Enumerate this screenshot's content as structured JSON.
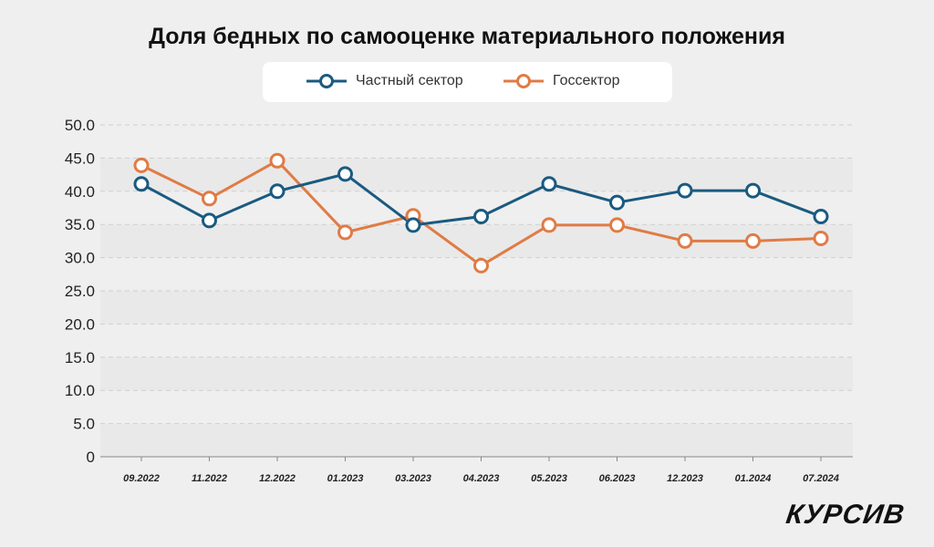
{
  "chart_data": {
    "type": "line",
    "title": "Доля бедных по самооценке материального положения",
    "xlabel": "",
    "ylabel": "",
    "ylim": [
      0,
      50
    ],
    "yticks": [
      "0",
      "5.0",
      "10.0",
      "15.0",
      "20.0",
      "25.0",
      "30.0",
      "35.0",
      "40.0",
      "45.0",
      "50.0"
    ],
    "categories": [
      "09.2022",
      "11.2022",
      "12.2022",
      "01.2023",
      "03.2023",
      "04.2023",
      "05.2023",
      "06.2023",
      "12.2023",
      "01.2024",
      "07.2024"
    ],
    "grid": true,
    "legend_position": "top",
    "series": [
      {
        "name": "Частный сектор",
        "color": "#1a5a80",
        "values": [
          41.1,
          35.6,
          40.0,
          42.6,
          34.9,
          36.2,
          41.1,
          38.3,
          40.1,
          40.1,
          36.2
        ]
      },
      {
        "name": "Госсектор",
        "color": "#e07b45",
        "values": [
          43.9,
          38.9,
          44.6,
          33.8,
          36.3,
          28.8,
          34.9,
          34.9,
          32.5,
          32.5,
          32.9
        ]
      }
    ]
  },
  "logo": "КУРСИВ"
}
